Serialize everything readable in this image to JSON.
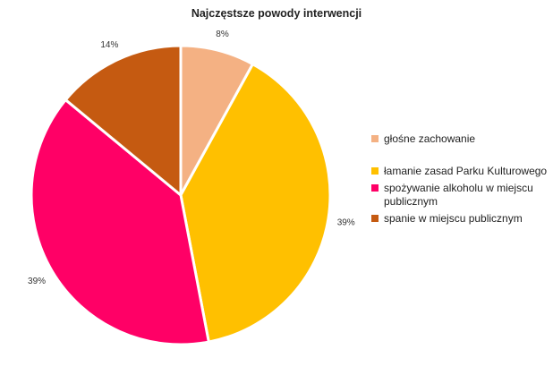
{
  "chart_data": {
    "type": "pie",
    "title": "Najczęstsze powody interwencji",
    "categories": [
      "głośne zachowanie",
      "łamanie zasad Parku Kulturowego",
      "spożywanie alkoholu w miejscu publicznym",
      "spanie w miejscu publicznym"
    ],
    "values": [
      8,
      39,
      39,
      14
    ],
    "labels": [
      "8%",
      "39%",
      "39%",
      "14%"
    ],
    "colors": [
      "#F4B183",
      "#FFC000",
      "#FF0066",
      "#C55A11"
    ],
    "legend_position": "right",
    "start_angle_deg": 0,
    "direction": "clockwise"
  }
}
